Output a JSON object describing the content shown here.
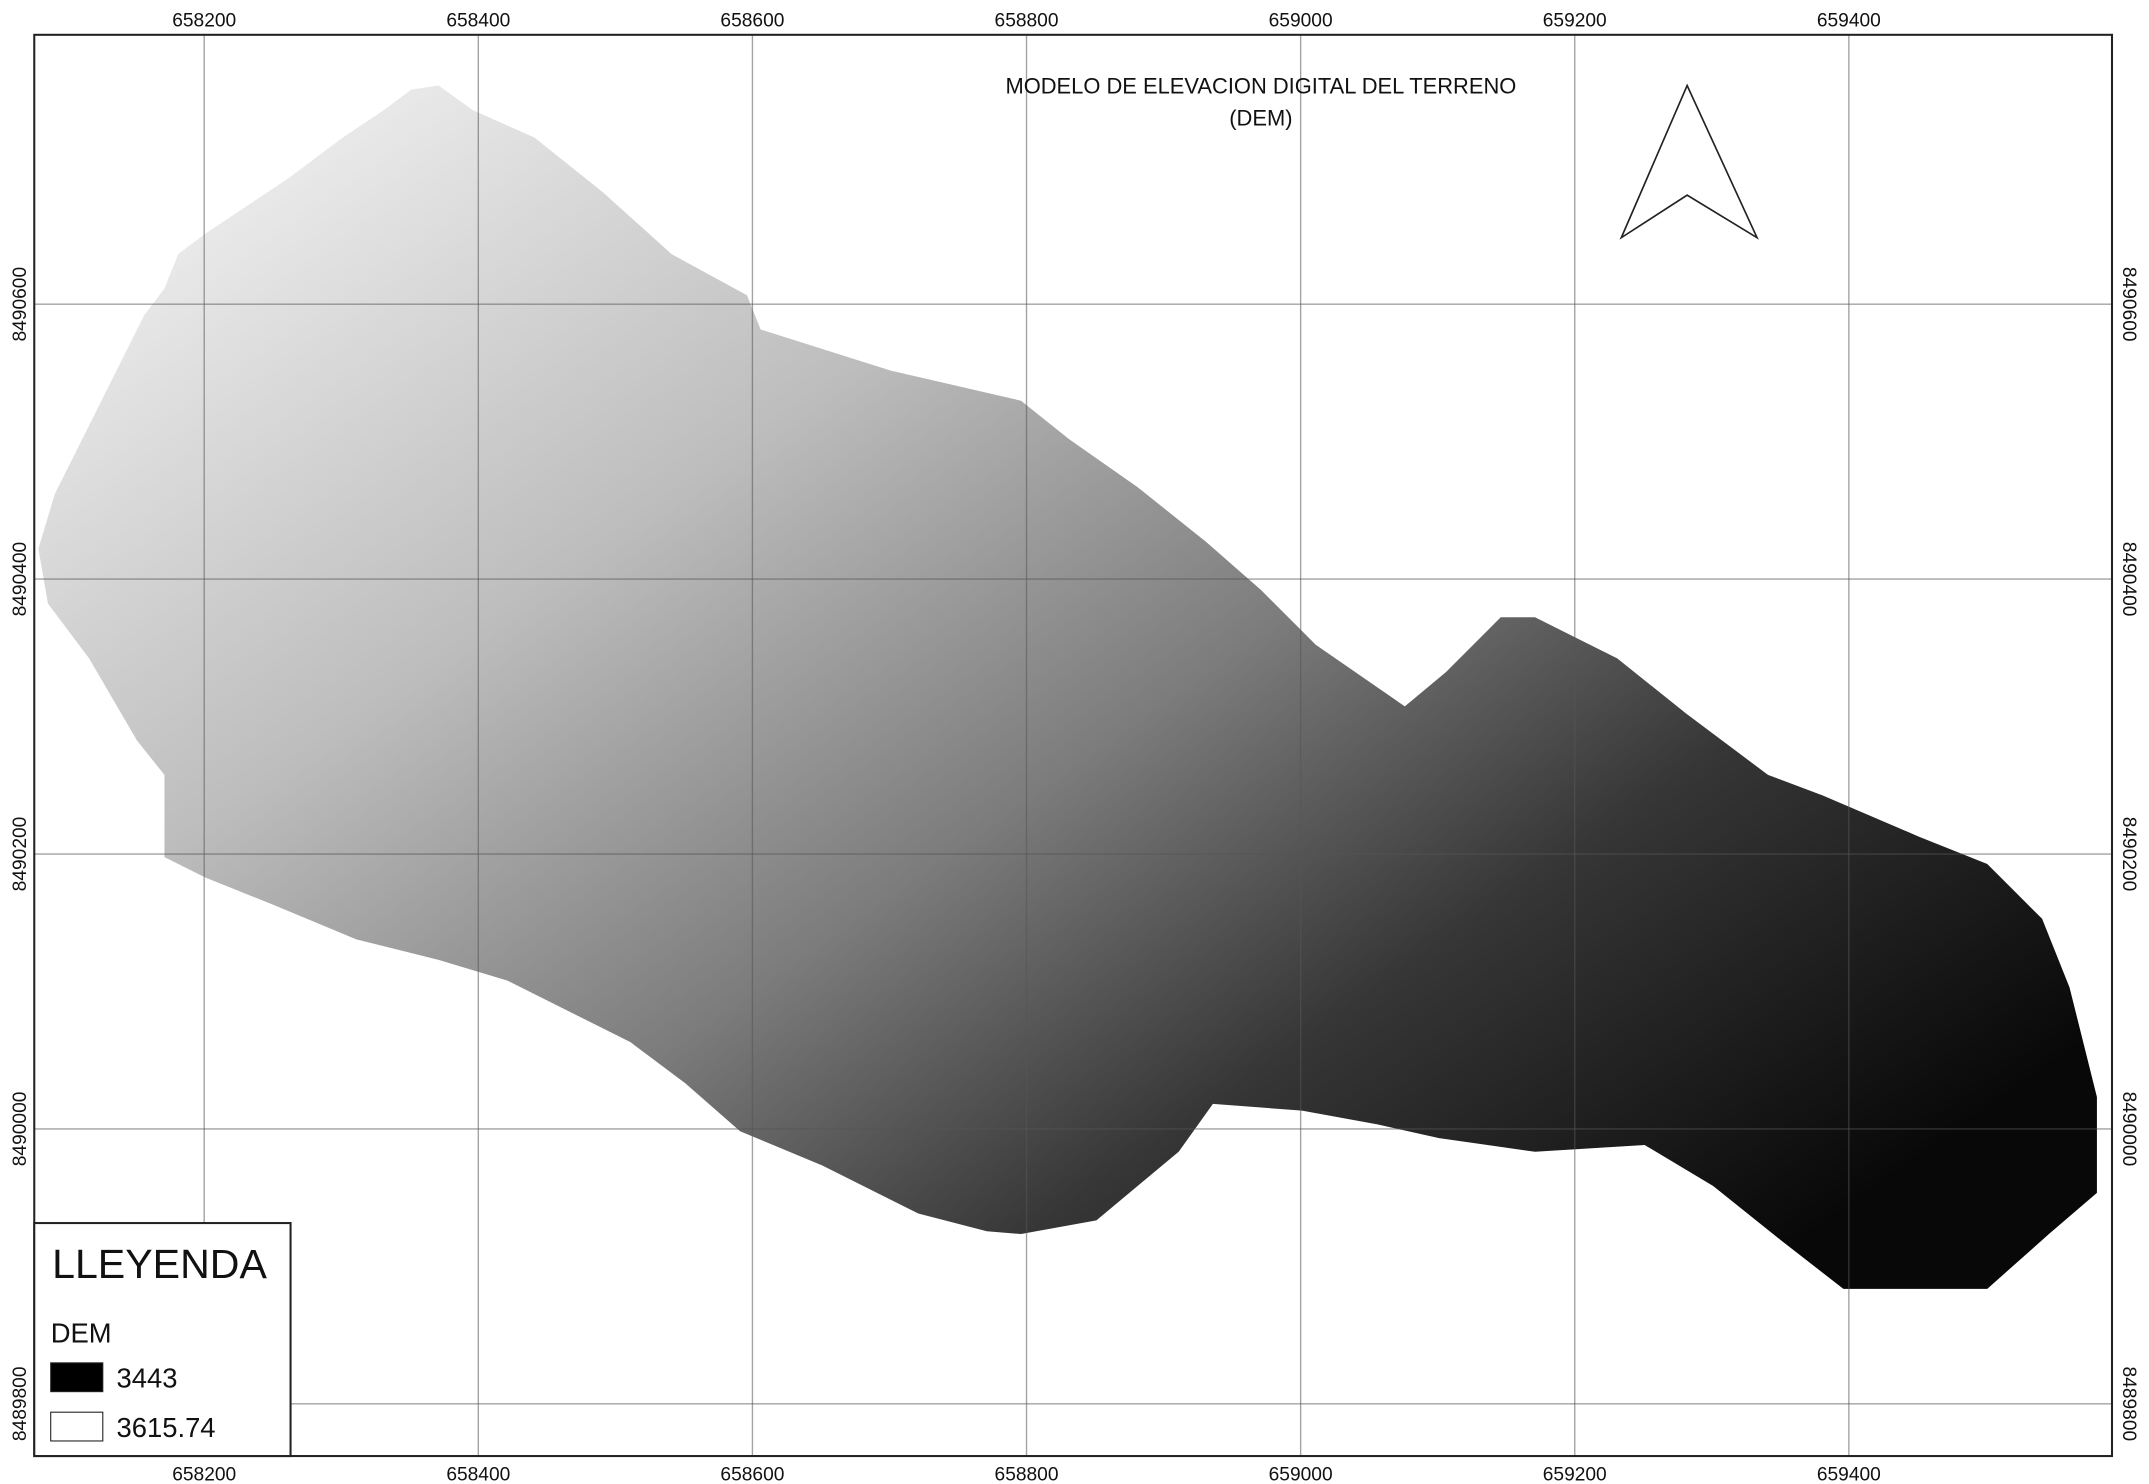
{
  "map": {
    "title": [
      "MODELO DE ELEVACION DIGITAL DEL TERRENO",
      "(DEM)"
    ],
    "xlim": [
      658076,
      659592
    ],
    "ylim": [
      8489762,
      8490796
    ],
    "xticks": [
      658200,
      658400,
      658600,
      658800,
      659000,
      659200,
      659400
    ],
    "yticks": [
      8489800,
      8490000,
      8490200,
      8490400,
      8490600
    ],
    "grid": true
  },
  "legend": {
    "title": "LLEYENDA",
    "layer": "DEM",
    "items": [
      {
        "label": 3443,
        "color": "#000000"
      },
      {
        "label": 3615.74,
        "color": "#ffffff"
      }
    ]
  }
}
